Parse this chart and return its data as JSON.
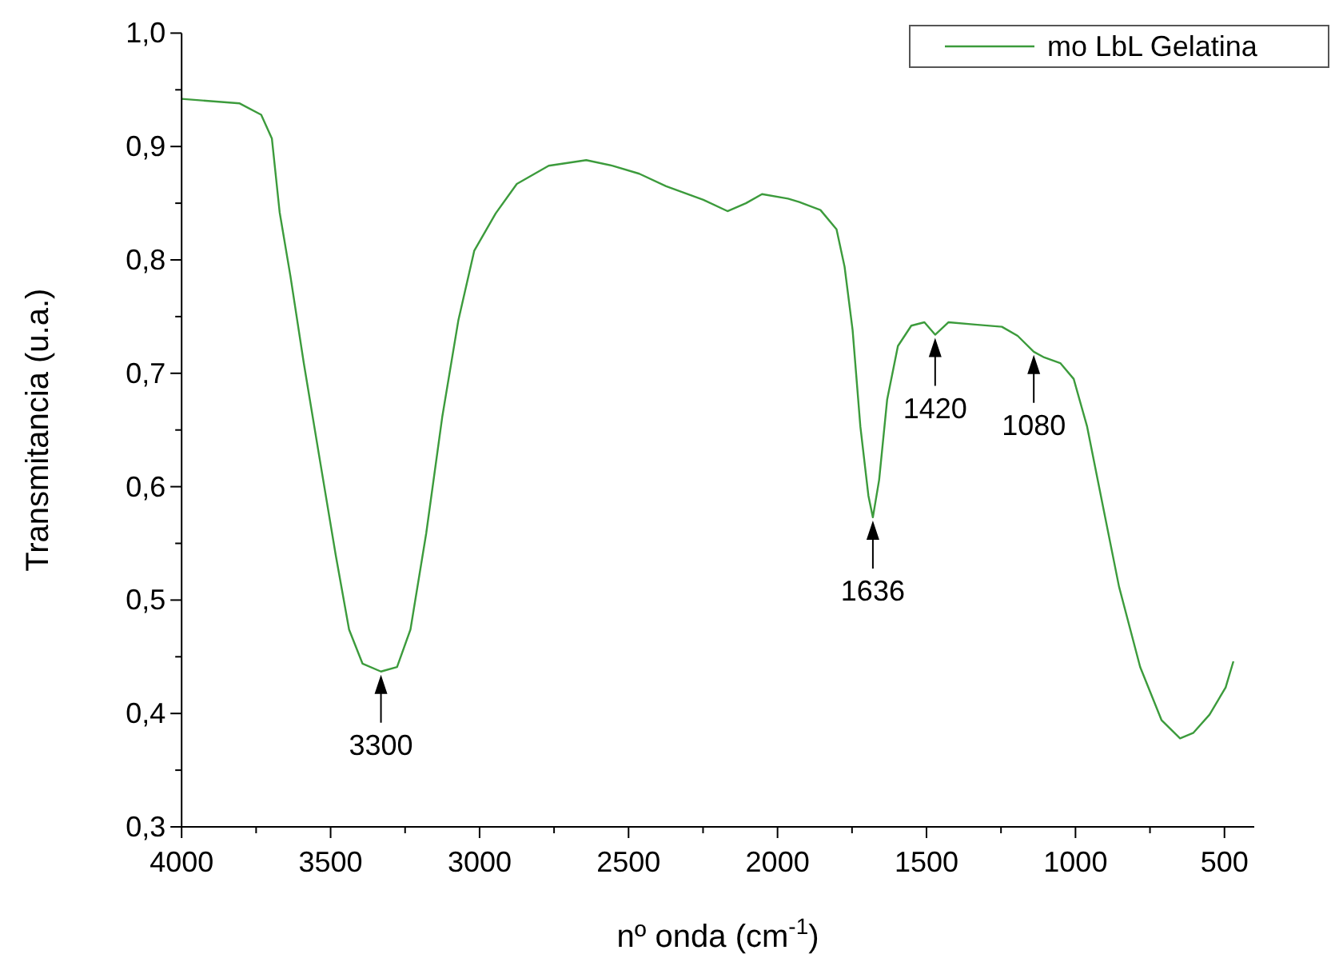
{
  "chart_data": {
    "type": "line",
    "xlabel": "nº onda (cm$^{-1}$)",
    "ylabel": "Transmitancia (u.a.)",
    "legend": "top right",
    "xlim": [
      4000,
      400
    ],
    "ylim": [
      0.3,
      1.0
    ],
    "xticks": [
      4000,
      {
        "value": 3750,
        "label": null
      },
      3500,
      {
        "value": 3250,
        "label": null
      },
      3000,
      {
        "value": 2750,
        "label": null
      },
      2500,
      {
        "value": 2250,
        "label": null
      },
      2000,
      {
        "value": 1750,
        "label": null
      },
      1500,
      {
        "value": 1250,
        "label": null
      },
      1000,
      {
        "value": 750,
        "label": null
      },
      500
    ],
    "yticks": [
      {
        "value": 0.3,
        "label": "0,3"
      },
      {
        "value": 0.35,
        "label": null
      },
      {
        "value": 0.4,
        "label": "0,4"
      },
      {
        "value": 0.45,
        "label": null
      },
      {
        "value": 0.5,
        "label": "0,5"
      },
      {
        "value": 0.55,
        "label": null
      },
      {
        "value": 0.6,
        "label": "0,6"
      },
      {
        "value": 0.65,
        "label": null
      },
      {
        "value": 0.7,
        "label": "0,7"
      },
      {
        "value": 0.75,
        "label": null
      },
      {
        "value": 0.8,
        "label": "0,8"
      },
      {
        "value": 0.85,
        "label": null
      },
      {
        "value": 0.9,
        "label": "0,9"
      },
      {
        "value": 0.95,
        "label": null
      },
      {
        "value": 1.0,
        "label": "1,0"
      }
    ],
    "x": [
      4000,
      3805,
      3733,
      3697,
      3671,
      3635,
      3590,
      3537,
      3483,
      3438,
      3393,
      3331,
      3277,
      3232,
      3179,
      3125,
      3071,
      3018,
      2946,
      2875,
      2768,
      2642,
      2553,
      2464,
      2374,
      2249,
      2168,
      2106,
      2052,
      1965,
      1927,
      1856,
      1802,
      1775,
      1748,
      1722,
      1695,
      1680,
      1659,
      1632,
      1596,
      1551,
      1507,
      1471,
      1426,
      1337,
      1247,
      1194,
      1140,
      1105,
      1051,
      1006,
      961,
      908,
      854,
      783,
      711,
      649,
      604,
      550,
      496,
      470
    ],
    "series": [
      {
        "name": "mo LbL Gelatina",
        "color": "#3c9b3c",
        "values": [
          0.942,
          0.938,
          0.928,
          0.907,
          0.842,
          0.786,
          0.709,
          0.625,
          0.54,
          0.474,
          0.444,
          0.437,
          0.441,
          0.474,
          0.559,
          0.662,
          0.747,
          0.808,
          0.841,
          0.867,
          0.883,
          0.888,
          0.883,
          0.876,
          0.865,
          0.853,
          0.843,
          0.85,
          0.858,
          0.854,
          0.851,
          0.844,
          0.827,
          0.794,
          0.738,
          0.653,
          0.592,
          0.573,
          0.606,
          0.677,
          0.724,
          0.742,
          0.745,
          0.734,
          0.745,
          0.743,
          0.741,
          0.733,
          0.719,
          0.714,
          0.709,
          0.695,
          0.653,
          0.583,
          0.512,
          0.441,
          0.394,
          0.378,
          0.383,
          0.399,
          0.423,
          0.446
        ]
      }
    ],
    "annotations": [
      {
        "text": "3300",
        "x": 3331,
        "y": 0.437
      },
      {
        "text": "1636",
        "x": 1680,
        "y": 0.573
      },
      {
        "text": "1420",
        "x": 1471,
        "y": 0.734
      },
      {
        "text": "1080",
        "x": 1140,
        "y": 0.719
      }
    ]
  }
}
